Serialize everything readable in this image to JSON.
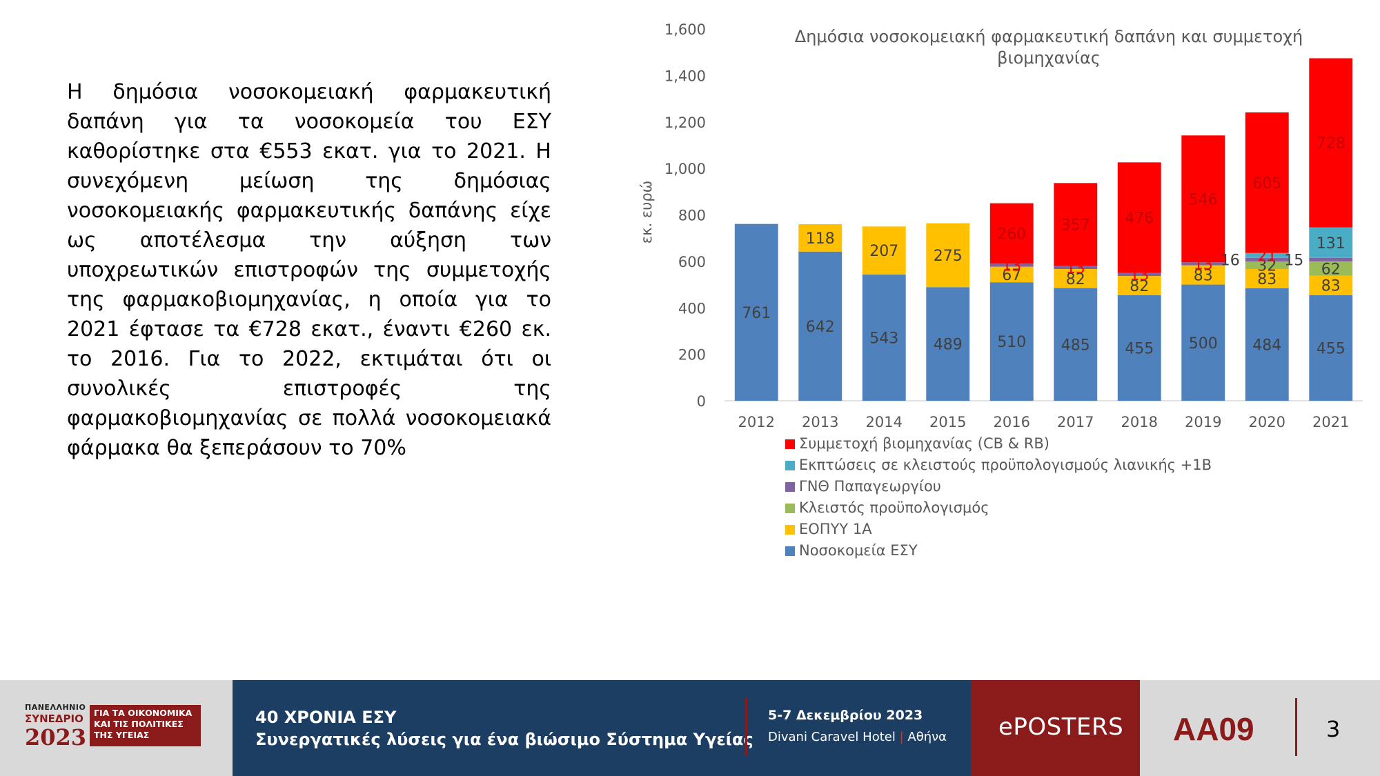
{
  "body_text": "Η δημόσια νοσοκομειακή φαρμακευτική δαπάνη για τα νοσοκομεία του ΕΣΥ καθορίστηκε στα €553 εκατ. για το 2021. Η συνεχόμενη μείωση της δημόσιας νοσοκομειακής φαρμακευτικής δαπάνης είχε ως αποτέλεσμα την αύξηση των υποχρεωτικών επιστροφών της συμμετοχής της φαρμακοβιομηχανίας, η οποία για το 2021 έφτασε τα €728 εκατ., έναντι €260 εκ. το 2016. Για το 2022, εκτιμάται ότι οι συνολικές επιστροφές της φαρμακοβιομηχανίας σε πολλά νοσοκομειακά φάρμακα θα ξεπεράσουν το 70%",
  "chart_data": {
    "type": "bar",
    "stacked": true,
    "title": "Δημόσια νοσοκομειακή φαρμακευτική δαπάνη και συμμετοχή βιομηχανίας",
    "ylabel": "εκ. ευρώ",
    "ylim": [
      0,
      1600
    ],
    "yticks": [
      0,
      200,
      400,
      600,
      800,
      1000,
      1200,
      1400,
      1600
    ],
    "ytick_labels": [
      "0",
      "200",
      "400",
      "600",
      "800",
      "1,000",
      "1,200",
      "1,400",
      "1,600"
    ],
    "categories": [
      "2012",
      "2013",
      "2014",
      "2015",
      "2016",
      "2017",
      "2018",
      "2019",
      "2020",
      "2021"
    ],
    "series": [
      {
        "name": "Νοσοκομεία ΕΣΥ",
        "color": "#4f81bd",
        "values": [
          761,
          642,
          543,
          489,
          510,
          485,
          455,
          500,
          484,
          455
        ]
      },
      {
        "name": "ΕΟΠΥΥ 1Α",
        "color": "#ffc000",
        "values": [
          0,
          118,
          207,
          275,
          67,
          82,
          82,
          83,
          83,
          83
        ]
      },
      {
        "name": "Κλειστός προϋπολογισμός",
        "color": "#9bbb59",
        "values": [
          0,
          0,
          0,
          0,
          0,
          0,
          0,
          0,
          32,
          62
        ]
      },
      {
        "name": "ΓΝΘ Παπαγεωργίου",
        "color": "#8064a2",
        "values": [
          0,
          0,
          0,
          0,
          13,
          13,
          13,
          13,
          16,
          15
        ]
      },
      {
        "name": "Εκπτώσεις σε κλειστούς προϋπολογισμούς λιανικής +1Β",
        "color": "#4bacc6",
        "values": [
          0,
          0,
          0,
          0,
          0,
          0,
          0,
          0,
          21,
          131
        ]
      },
      {
        "name": "Συμμετοχή βιομηχανίας (CB & RB)",
        "color": "#ff0000",
        "values": [
          0,
          0,
          0,
          0,
          260,
          357,
          476,
          546,
          605,
          728
        ]
      }
    ],
    "legend_position": "bottom",
    "legend_order": [
      "Συμμετοχή βιομηχανίας (CB & RB)",
      "Εκπτώσεις σε κλειστούς προϋπολογισμούς λιανικής +1Β",
      "ΓΝΘ Παπαγεωργίου",
      "Κλειστός προϋπολογισμός",
      "ΕΟΠΥΥ 1Α",
      "Νοσοκομεία ΕΣΥ"
    ],
    "grid": false
  },
  "footer": {
    "logo_line1": "ΠΑΝΕΛΛΗΝΙΟ",
    "logo_line2": "ΣΥΝΕΔΡΙΟ",
    "logo_year": "2023",
    "logo_box": [
      "ΓΙΑ ΤΑ ΟΙΚΟΝΟΜΙΚΑ",
      "ΚΑΙ ΤΙΣ ΠΟΛΙΤΙΚΕΣ",
      "ΤΗΣ ΥΓΕΙΑΣ"
    ],
    "title": "40 ΧΡΟΝΙΑ ΕΣΥ",
    "subtitle": "Συνεργατικές λύσεις για ένα βιώσιμο Σύστημα Υγείας",
    "date": "5-7 Δεκεμβρίου 2023",
    "venue": "Divani Caravel Hotel",
    "venue_sep": "|",
    "city": "Αθήνα",
    "eposters": "ePOSTERS",
    "code": "AA09",
    "page": "3"
  }
}
